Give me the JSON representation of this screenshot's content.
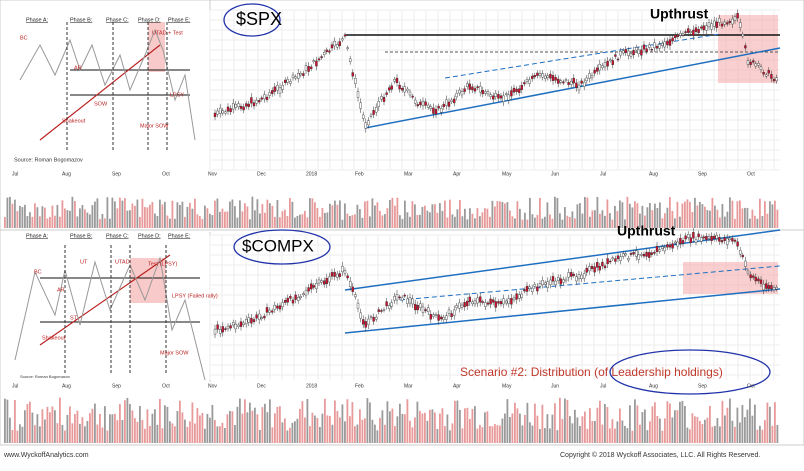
{
  "top_panel": {
    "symbol": "$SPX",
    "annotation": "Upthrust",
    "months": [
      "Nov",
      "Dec",
      "2018",
      "Feb",
      "Mar",
      "Apr",
      "May",
      "Jun",
      "Jul",
      "Aug",
      "Sep",
      "Oct"
    ],
    "schematic": {
      "phases": [
        "Phase A:",
        "Phase B:",
        "Phase C:",
        "Phase D:",
        "Phase E:"
      ],
      "labels": {
        "bc": "BC",
        "ar": "AR",
        "utad": "UTAD + Test",
        "shakeout": "Shakeout",
        "sow": "SOW",
        "lpsy": "LPSY",
        "major_sow": "Major SOW"
      },
      "months": [
        "Jul",
        "Aug",
        "Sep",
        "Oct"
      ],
      "source": "Source: Roman Bogomazov"
    }
  },
  "bottom_panel": {
    "symbol": "$COMPX",
    "annotation": "Upthrust",
    "scenario": "Scenario #2: Distribution (of Leadership holdings)",
    "months": [
      "Nov",
      "Dec",
      "2018",
      "Feb",
      "Mar",
      "Apr",
      "May",
      "Jun",
      "Jul",
      "Aug",
      "Sep",
      "Oct"
    ],
    "schematic": {
      "phases": [
        "Phase A:",
        "Phase B:",
        "Phase C:",
        "Phase D:",
        "Phase E:"
      ],
      "labels": {
        "bc": "BC",
        "ar": "AR",
        "st": "ST",
        "ut": "UT",
        "utad": "UTAD",
        "test": "Test (LPSY)",
        "shakeout": "Shakeout",
        "lpsy": "LPSY (Failed rally)",
        "major_sow": "Major SOW"
      },
      "months": [
        "Jul",
        "Aug",
        "Sep",
        "Oct"
      ],
      "source": "Source: Roman Bogomazov"
    }
  },
  "footer": {
    "website": "www.WyckoffAnalytics.com",
    "copyright": "Copyright © 2018 Wyckoff Associates, LLC. All Rights Reserved."
  }
}
